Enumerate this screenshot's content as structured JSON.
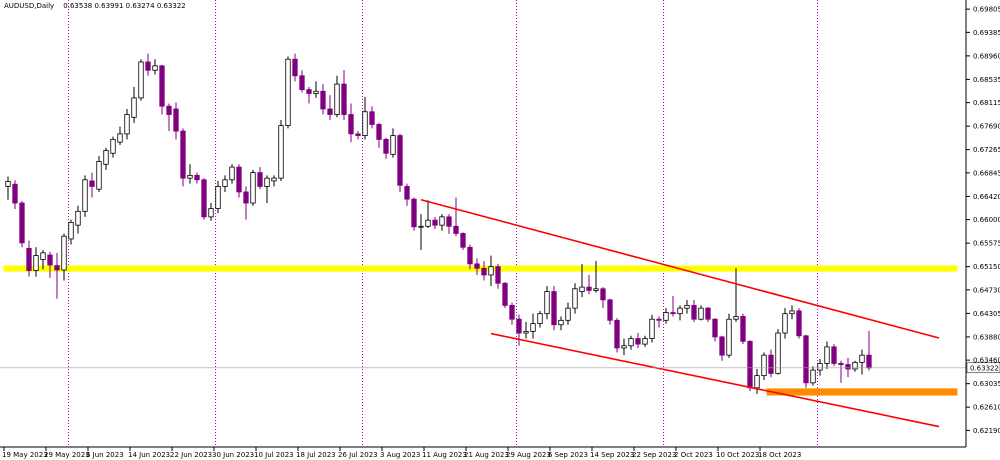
{
  "header": {
    "symbol": "AUDUSD,Daily",
    "ohlc": "0.63538 0.63991 0.63274 0.63322"
  },
  "current_price": {
    "value": 0.63322,
    "label": "0.63322"
  },
  "colors": {
    "background": "#ffffff",
    "bear_candle": "#800080",
    "bull_candle": "#ffffff",
    "candle_outline": "#000000",
    "period_separator": "#c000c0",
    "resistance_zone": "#ffff00",
    "support_zone": "#ff8c00",
    "channel_line": "#ff0000",
    "price_line": "#a0a0a0"
  },
  "chart_data": {
    "type": "candlestick",
    "title": "AUDUSD,Daily",
    "y_axis": {
      "range": [
        0.6189,
        0.6997
      ],
      "ticks": [
        "0.69805",
        "0.69385",
        "0.68960",
        "0.68535",
        "0.68115",
        "0.67690",
        "0.67265",
        "0.66845",
        "0.66420",
        "0.66000",
        "0.65575",
        "0.65150",
        "0.64730",
        "0.64305",
        "0.63880",
        "0.63460",
        "0.63035",
        "0.62610",
        "0.62190"
      ]
    },
    "x_axis": {
      "date_labels": [
        {
          "label": "19 May 2023",
          "index": 0
        },
        {
          "label": "29 May 2023",
          "index": 6
        },
        {
          "label": "6 Jun 2023",
          "index": 12
        },
        {
          "label": "14 Jun 2023",
          "index": 18
        },
        {
          "label": "22 Jun 2023",
          "index": 24
        },
        {
          "label": "30 Jun 2023",
          "index": 30
        },
        {
          "label": "10 Jul 2023",
          "index": 36
        },
        {
          "label": "18 Jul 2023",
          "index": 42
        },
        {
          "label": "26 Jul 2023",
          "index": 48
        },
        {
          "label": "3 Aug 2023",
          "index": 54
        },
        {
          "label": "11 Aug 2023",
          "index": 60
        },
        {
          "label": "21 Aug 2023",
          "index": 66
        },
        {
          "label": "29 Aug 2023",
          "index": 72
        },
        {
          "label": "6 Sep 2023",
          "index": 78
        },
        {
          "label": "14 Sep 2023",
          "index": 84
        },
        {
          "label": "22 Sep 2023",
          "index": 90
        },
        {
          "label": "2 Oct 2023",
          "index": 96
        },
        {
          "label": "10 Oct 2023",
          "index": 102
        },
        {
          "label": "18 Oct 2023",
          "index": 108
        }
      ]
    },
    "period_separators": [
      9,
      30,
      51,
      73,
      94,
      116
    ],
    "candles": [
      {
        "o": 0.666,
        "h": 0.6678,
        "l": 0.6636,
        "c": 0.6669
      },
      {
        "o": 0.6664,
        "h": 0.6671,
        "l": 0.6619,
        "c": 0.663
      },
      {
        "o": 0.663,
        "h": 0.6634,
        "l": 0.655,
        "c": 0.6558
      },
      {
        "o": 0.6548,
        "h": 0.6562,
        "l": 0.6497,
        "c": 0.6508
      },
      {
        "o": 0.6508,
        "h": 0.655,
        "l": 0.6497,
        "c": 0.6535
      },
      {
        "o": 0.6528,
        "h": 0.6545,
        "l": 0.651,
        "c": 0.654
      },
      {
        "o": 0.6536,
        "h": 0.6542,
        "l": 0.6495,
        "c": 0.6518
      },
      {
        "o": 0.6517,
        "h": 0.654,
        "l": 0.6457,
        "c": 0.6509
      },
      {
        "o": 0.6509,
        "h": 0.6575,
        "l": 0.649,
        "c": 0.657
      },
      {
        "o": 0.6565,
        "h": 0.66,
        "l": 0.6555,
        "c": 0.6595
      },
      {
        "o": 0.659,
        "h": 0.6625,
        "l": 0.6575,
        "c": 0.6615
      },
      {
        "o": 0.6615,
        "h": 0.668,
        "l": 0.6605,
        "c": 0.6672
      },
      {
        "o": 0.667,
        "h": 0.6685,
        "l": 0.664,
        "c": 0.666
      },
      {
        "o": 0.6655,
        "h": 0.6715,
        "l": 0.665,
        "c": 0.6705
      },
      {
        "o": 0.67,
        "h": 0.673,
        "l": 0.669,
        "c": 0.6725
      },
      {
        "o": 0.672,
        "h": 0.675,
        "l": 0.6712,
        "c": 0.6745
      },
      {
        "o": 0.674,
        "h": 0.6768,
        "l": 0.6735,
        "c": 0.6755
      },
      {
        "o": 0.6755,
        "h": 0.68,
        "l": 0.6745,
        "c": 0.679
      },
      {
        "o": 0.6785,
        "h": 0.684,
        "l": 0.6775,
        "c": 0.682
      },
      {
        "o": 0.682,
        "h": 0.689,
        "l": 0.6815,
        "c": 0.6885
      },
      {
        "o": 0.6885,
        "h": 0.69,
        "l": 0.686,
        "c": 0.687
      },
      {
        "o": 0.687,
        "h": 0.689,
        "l": 0.6862,
        "c": 0.6878
      },
      {
        "o": 0.6878,
        "h": 0.688,
        "l": 0.679,
        "c": 0.6805
      },
      {
        "o": 0.6805,
        "h": 0.681,
        "l": 0.676,
        "c": 0.679
      },
      {
        "o": 0.68,
        "h": 0.6812,
        "l": 0.6745,
        "c": 0.676
      },
      {
        "o": 0.676,
        "h": 0.6765,
        "l": 0.666,
        "c": 0.6675
      },
      {
        "o": 0.6675,
        "h": 0.67,
        "l": 0.6665,
        "c": 0.668
      },
      {
        "o": 0.668,
        "h": 0.6685,
        "l": 0.6665,
        "c": 0.6672
      },
      {
        "o": 0.6672,
        "h": 0.6675,
        "l": 0.66,
        "c": 0.6605
      },
      {
        "o": 0.6605,
        "h": 0.663,
        "l": 0.6598,
        "c": 0.662
      },
      {
        "o": 0.662,
        "h": 0.667,
        "l": 0.6612,
        "c": 0.666
      },
      {
        "o": 0.666,
        "h": 0.668,
        "l": 0.665,
        "c": 0.6672
      },
      {
        "o": 0.6672,
        "h": 0.67,
        "l": 0.6665,
        "c": 0.6695
      },
      {
        "o": 0.6695,
        "h": 0.67,
        "l": 0.664,
        "c": 0.665
      },
      {
        "o": 0.665,
        "h": 0.666,
        "l": 0.66,
        "c": 0.663
      },
      {
        "o": 0.663,
        "h": 0.669,
        "l": 0.6625,
        "c": 0.6685
      },
      {
        "o": 0.6685,
        "h": 0.6695,
        "l": 0.6655,
        "c": 0.666
      },
      {
        "o": 0.666,
        "h": 0.668,
        "l": 0.663,
        "c": 0.6675
      },
      {
        "o": 0.667,
        "h": 0.668,
        "l": 0.666,
        "c": 0.6675
      },
      {
        "o": 0.6675,
        "h": 0.678,
        "l": 0.667,
        "c": 0.677
      },
      {
        "o": 0.677,
        "h": 0.6895,
        "l": 0.6765,
        "c": 0.689
      },
      {
        "o": 0.689,
        "h": 0.69,
        "l": 0.685,
        "c": 0.686
      },
      {
        "o": 0.686,
        "h": 0.687,
        "l": 0.683,
        "c": 0.6835
      },
      {
        "o": 0.6835,
        "h": 0.684,
        "l": 0.681,
        "c": 0.6828
      },
      {
        "o": 0.6828,
        "h": 0.685,
        "l": 0.682,
        "c": 0.6832
      },
      {
        "o": 0.6832,
        "h": 0.6845,
        "l": 0.679,
        "c": 0.68
      },
      {
        "o": 0.68,
        "h": 0.6825,
        "l": 0.678,
        "c": 0.679
      },
      {
        "o": 0.679,
        "h": 0.686,
        "l": 0.6785,
        "c": 0.6845
      },
      {
        "o": 0.6845,
        "h": 0.687,
        "l": 0.678,
        "c": 0.679
      },
      {
        "o": 0.679,
        "h": 0.681,
        "l": 0.674,
        "c": 0.6755
      },
      {
        "o": 0.6755,
        "h": 0.676,
        "l": 0.6745,
        "c": 0.6752
      },
      {
        "o": 0.6752,
        "h": 0.6822,
        "l": 0.6745,
        "c": 0.6795
      },
      {
        "o": 0.6795,
        "h": 0.6805,
        "l": 0.6765,
        "c": 0.6772
      },
      {
        "o": 0.6772,
        "h": 0.6775,
        "l": 0.673,
        "c": 0.6745
      },
      {
        "o": 0.6745,
        "h": 0.6748,
        "l": 0.671,
        "c": 0.672
      },
      {
        "o": 0.6718,
        "h": 0.6765,
        "l": 0.6712,
        "c": 0.6752
      },
      {
        "o": 0.6752,
        "h": 0.6755,
        "l": 0.665,
        "c": 0.6662
      },
      {
        "o": 0.666,
        "h": 0.6665,
        "l": 0.6625,
        "c": 0.6637
      },
      {
        "o": 0.6637,
        "h": 0.664,
        "l": 0.658,
        "c": 0.6587
      },
      {
        "o": 0.6587,
        "h": 0.661,
        "l": 0.6545,
        "c": 0.6588
      },
      {
        "o": 0.6588,
        "h": 0.6635,
        "l": 0.6585,
        "c": 0.6599
      },
      {
        "o": 0.6599,
        "h": 0.6605,
        "l": 0.6583,
        "c": 0.659
      },
      {
        "o": 0.659,
        "h": 0.661,
        "l": 0.658,
        "c": 0.6605
      },
      {
        "o": 0.6605,
        "h": 0.661,
        "l": 0.6574,
        "c": 0.6588
      },
      {
        "o": 0.6588,
        "h": 0.664,
        "l": 0.657,
        "c": 0.6575
      },
      {
        "o": 0.6575,
        "h": 0.6577,
        "l": 0.6545,
        "c": 0.655
      },
      {
        "o": 0.655,
        "h": 0.6555,
        "l": 0.651,
        "c": 0.652
      },
      {
        "o": 0.652,
        "h": 0.653,
        "l": 0.65,
        "c": 0.6512
      },
      {
        "o": 0.6512,
        "h": 0.6525,
        "l": 0.649,
        "c": 0.65
      },
      {
        "o": 0.65,
        "h": 0.6535,
        "l": 0.648,
        "c": 0.6515
      },
      {
        "o": 0.6515,
        "h": 0.652,
        "l": 0.6475,
        "c": 0.6485
      },
      {
        "o": 0.6485,
        "h": 0.6487,
        "l": 0.644,
        "c": 0.6445
      },
      {
        "o": 0.6445,
        "h": 0.645,
        "l": 0.641,
        "c": 0.642
      },
      {
        "o": 0.642,
        "h": 0.6428,
        "l": 0.6372,
        "c": 0.6395
      },
      {
        "o": 0.6395,
        "h": 0.6415,
        "l": 0.6385,
        "c": 0.6398
      },
      {
        "o": 0.6398,
        "h": 0.643,
        "l": 0.6385,
        "c": 0.6412
      },
      {
        "o": 0.6412,
        "h": 0.6435,
        "l": 0.6405,
        "c": 0.643
      },
      {
        "o": 0.643,
        "h": 0.648,
        "l": 0.642,
        "c": 0.647
      },
      {
        "o": 0.647,
        "h": 0.648,
        "l": 0.64,
        "c": 0.641
      },
      {
        "o": 0.641,
        "h": 0.6425,
        "l": 0.64,
        "c": 0.6418
      },
      {
        "o": 0.6418,
        "h": 0.645,
        "l": 0.641,
        "c": 0.644
      },
      {
        "o": 0.644,
        "h": 0.6485,
        "l": 0.643,
        "c": 0.6475
      },
      {
        "o": 0.647,
        "h": 0.652,
        "l": 0.646,
        "c": 0.6478
      },
      {
        "o": 0.6478,
        "h": 0.65,
        "l": 0.6465,
        "c": 0.6472
      },
      {
        "o": 0.6472,
        "h": 0.6525,
        "l": 0.6468,
        "c": 0.6475
      },
      {
        "o": 0.6475,
        "h": 0.6478,
        "l": 0.644,
        "c": 0.6455
      },
      {
        "o": 0.6455,
        "h": 0.6457,
        "l": 0.641,
        "c": 0.6418
      },
      {
        "o": 0.6418,
        "h": 0.6422,
        "l": 0.636,
        "c": 0.6368
      },
      {
        "o": 0.6368,
        "h": 0.6385,
        "l": 0.6355,
        "c": 0.6372
      },
      {
        "o": 0.6372,
        "h": 0.639,
        "l": 0.6365,
        "c": 0.6385
      },
      {
        "o": 0.6385,
        "h": 0.6395,
        "l": 0.6368,
        "c": 0.6375
      },
      {
        "o": 0.6375,
        "h": 0.639,
        "l": 0.637,
        "c": 0.6385
      },
      {
        "o": 0.6385,
        "h": 0.6428,
        "l": 0.6378,
        "c": 0.642
      },
      {
        "o": 0.642,
        "h": 0.6425,
        "l": 0.6405,
        "c": 0.6418
      },
      {
        "o": 0.6418,
        "h": 0.644,
        "l": 0.6412,
        "c": 0.6432
      },
      {
        "o": 0.6432,
        "h": 0.6462,
        "l": 0.6425,
        "c": 0.643
      },
      {
        "o": 0.643,
        "h": 0.6445,
        "l": 0.6418,
        "c": 0.644
      },
      {
        "o": 0.644,
        "h": 0.6455,
        "l": 0.643,
        "c": 0.6445
      },
      {
        "o": 0.6445,
        "h": 0.6455,
        "l": 0.6415,
        "c": 0.642
      },
      {
        "o": 0.642,
        "h": 0.6445,
        "l": 0.6418,
        "c": 0.644
      },
      {
        "o": 0.644,
        "h": 0.6442,
        "l": 0.6415,
        "c": 0.642
      },
      {
        "o": 0.642,
        "h": 0.6422,
        "l": 0.638,
        "c": 0.6388
      },
      {
        "o": 0.6388,
        "h": 0.639,
        "l": 0.6345,
        "c": 0.6355
      },
      {
        "o": 0.6355,
        "h": 0.643,
        "l": 0.635,
        "c": 0.642
      },
      {
        "o": 0.642,
        "h": 0.6512,
        "l": 0.6415,
        "c": 0.6425
      },
      {
        "o": 0.6425,
        "h": 0.643,
        "l": 0.6375,
        "c": 0.638
      },
      {
        "o": 0.638,
        "h": 0.6382,
        "l": 0.629,
        "c": 0.6296
      },
      {
        "o": 0.6296,
        "h": 0.633,
        "l": 0.6285,
        "c": 0.6318
      },
      {
        "o": 0.6318,
        "h": 0.636,
        "l": 0.631,
        "c": 0.6355
      },
      {
        "o": 0.6355,
        "h": 0.6365,
        "l": 0.6315,
        "c": 0.6322
      },
      {
        "o": 0.6322,
        "h": 0.6402,
        "l": 0.632,
        "c": 0.6395
      },
      {
        "o": 0.6395,
        "h": 0.644,
        "l": 0.6385,
        "c": 0.643
      },
      {
        "o": 0.643,
        "h": 0.6445,
        "l": 0.642,
        "c": 0.6435
      },
      {
        "o": 0.6435,
        "h": 0.644,
        "l": 0.6385,
        "c": 0.639
      },
      {
        "o": 0.639,
        "h": 0.6392,
        "l": 0.6296,
        "c": 0.6305
      },
      {
        "o": 0.6305,
        "h": 0.6335,
        "l": 0.63,
        "c": 0.6328
      },
      {
        "o": 0.6328,
        "h": 0.6348,
        "l": 0.6318,
        "c": 0.634
      },
      {
        "o": 0.634,
        "h": 0.638,
        "l": 0.633,
        "c": 0.637
      },
      {
        "o": 0.637,
        "h": 0.6375,
        "l": 0.6335,
        "c": 0.634
      },
      {
        "o": 0.634,
        "h": 0.6345,
        "l": 0.6305,
        "c": 0.6338
      },
      {
        "o": 0.6338,
        "h": 0.635,
        "l": 0.6315,
        "c": 0.633
      },
      {
        "o": 0.633,
        "h": 0.6345,
        "l": 0.6325,
        "c": 0.6342
      },
      {
        "o": 0.6342,
        "h": 0.6365,
        "l": 0.632,
        "c": 0.6355
      },
      {
        "o": 0.6355,
        "h": 0.6399,
        "l": 0.6327,
        "c": 0.6332
      }
    ],
    "zones": [
      {
        "name": "resistance",
        "from_index": 0,
        "to_index": 135,
        "low": 0.6506,
        "high": 0.6517
      },
      {
        "name": "support",
        "from_index": 109,
        "to_index": 135,
        "low": 0.6282,
        "high": 0.6295
      }
    ],
    "channel_lines": [
      {
        "x1": 59,
        "y1": 0.6636,
        "x2": 133,
        "y2": 0.6386
      },
      {
        "x1": 69,
        "y1": 0.6394,
        "x2": 133,
        "y2": 0.6226
      }
    ]
  }
}
